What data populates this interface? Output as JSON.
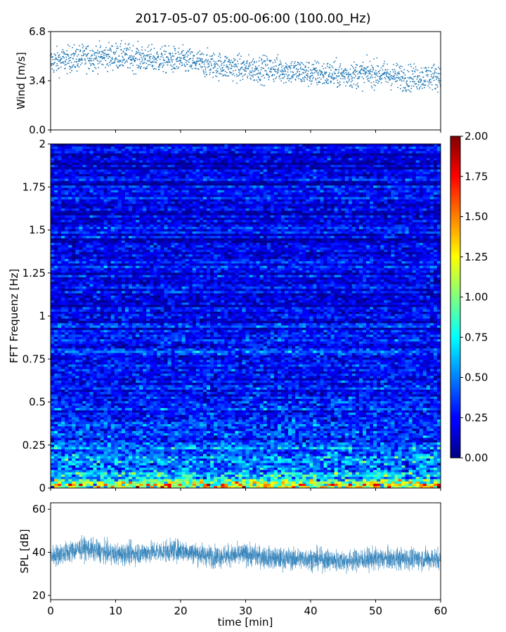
{
  "figure": {
    "title": "2017-05-07 05:00-06:00 (100.00_Hz)"
  },
  "chart_data": [
    {
      "id": "wind",
      "type": "scatter",
      "ylabel": "Wind [m/s]",
      "xlim": [
        0,
        60
      ],
      "ylim": [
        0,
        6.8
      ],
      "yticks": [
        0.0,
        3.4,
        6.8
      ],
      "ytick_labels": [
        "0.0",
        "3.4",
        "6.8"
      ],
      "xticks": [
        0,
        10,
        20,
        30,
        40,
        50,
        60
      ],
      "color": "#1f77b4",
      "trend": {
        "x": [
          0,
          5,
          10,
          15,
          20,
          25,
          30,
          35,
          40,
          45,
          50,
          55,
          60
        ],
        "y": [
          4.7,
          5.0,
          5.1,
          4.9,
          4.8,
          4.5,
          4.2,
          4.2,
          3.9,
          3.8,
          3.9,
          3.6,
          3.7
        ]
      },
      "spread": 0.75,
      "sample_count": 1800
    },
    {
      "id": "spectrogram",
      "type": "heatmap",
      "ylabel": "FFT Frequenz [Hz]",
      "xlim": [
        0,
        60
      ],
      "ylim": [
        0,
        2
      ],
      "yticks": [
        0,
        0.25,
        0.5,
        0.75,
        1,
        1.25,
        1.5,
        1.75,
        2
      ],
      "ytick_labels": [
        "0",
        "0.25",
        "0.5",
        "0.75",
        "1",
        "1.25",
        "1.5",
        "1.75",
        "2"
      ],
      "colormap": "jet",
      "colorbar": {
        "range": [
          0,
          2
        ],
        "ticks": [
          0.0,
          0.25,
          0.5,
          0.75,
          1.0,
          1.25,
          1.5,
          1.75,
          2.0
        ],
        "tick_labels": [
          "0.00",
          "0.25",
          "0.50",
          "0.75",
          "1.00",
          "1.25",
          "1.50",
          "1.75",
          "2.00"
        ]
      },
      "time_bins": 110,
      "freq_bins": 150,
      "level_profile": {
        "freq": [
          0,
          0.02,
          0.05,
          0.1,
          0.2,
          0.3,
          0.5,
          0.75,
          1.0,
          1.5,
          2.0
        ],
        "value": [
          1.5,
          1.1,
          0.75,
          0.55,
          0.45,
          0.35,
          0.28,
          0.25,
          0.22,
          0.2,
          0.18
        ]
      }
    },
    {
      "id": "spl",
      "type": "line",
      "ylabel": "SPL [dB]",
      "xlabel": "time [min]",
      "xlim": [
        0,
        60
      ],
      "ylim": [
        18,
        63
      ],
      "yticks": [
        20,
        40,
        60
      ],
      "ytick_labels": [
        "20",
        "40",
        "60"
      ],
      "xticks": [
        0,
        10,
        20,
        30,
        40,
        50,
        60
      ],
      "xtick_labels": [
        "0",
        "10",
        "20",
        "30",
        "40",
        "50",
        "60"
      ],
      "color": "#1f77b4",
      "trend": {
        "x": [
          0,
          5,
          10,
          15,
          20,
          25,
          30,
          35,
          40,
          45,
          50,
          55,
          60
        ],
        "y": [
          38,
          42,
          39,
          40,
          41,
          38,
          39,
          37,
          37,
          36,
          37,
          37,
          37
        ]
      },
      "spread": 4.5,
      "sample_count": 3600
    }
  ]
}
